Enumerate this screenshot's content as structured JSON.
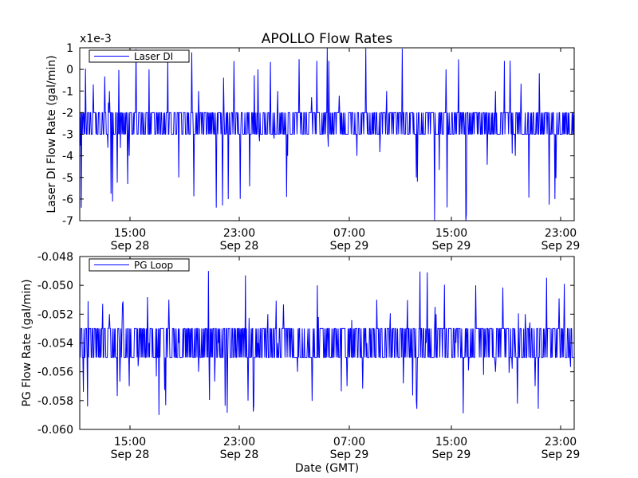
{
  "figure": {
    "title": "APOLLO Flow Rates",
    "shared_xlabel": "Date (GMT)",
    "time_ticks": [
      {
        "time": "15:00",
        "date": "Sep 28"
      },
      {
        "time": "23:00",
        "date": "Sep 28"
      },
      {
        "time": "07:00",
        "date": "Sep 29"
      },
      {
        "time": "15:00",
        "date": "Sep 29"
      },
      {
        "time": "23:00",
        "date": "Sep 29"
      }
    ]
  },
  "chart_data": [
    {
      "type": "line",
      "title": "APOLLO Flow Rates",
      "ylabel": "Laser DI Flow Rate (gal/min)",
      "xlabel": "",
      "offset_text": "x1e-3",
      "ylim": [
        -7,
        1
      ],
      "yticks": [
        "1",
        "0",
        "-1",
        "-2",
        "-3",
        "-4",
        "-5",
        "-6",
        "-7"
      ],
      "legend": {
        "label": "Laser DI",
        "location": "top-left"
      },
      "color": "#0000ff",
      "x_start": "2012-09-28 12:44",
      "x_end": "2012-09-30 00:02",
      "series": [
        {
          "name": "Laser DI",
          "typical_range": [
            -3,
            -2
          ],
          "spike_up_max": 1,
          "spike_down_min": -7,
          "summary_values": [
            -2,
            -3,
            -2,
            -1,
            -3,
            -4,
            -2,
            0,
            -2,
            -3,
            -5,
            -2,
            -1,
            -3,
            -2,
            -6,
            -2,
            -3,
            0,
            -2,
            -1,
            -4,
            -2,
            -3,
            -2,
            1,
            -2,
            -3,
            -4,
            -2,
            -2,
            -1,
            -3,
            -2,
            -5,
            -2,
            -3,
            0,
            -2,
            -7,
            -2,
            -3,
            -1,
            -2,
            -4,
            -2,
            -3,
            -2,
            -6,
            -2
          ]
        }
      ]
    },
    {
      "type": "line",
      "title": "",
      "ylabel": "PG Flow Rate (gal/min)",
      "xlabel": "Date (GMT)",
      "ylim": [
        -0.06,
        -0.048
      ],
      "yticks": [
        "-0.048",
        "-0.050",
        "-0.052",
        "-0.054",
        "-0.056",
        "-0.058",
        "-0.060"
      ],
      "legend": {
        "label": "PG Loop",
        "location": "top-left"
      },
      "color": "#0000ff",
      "x_start": "2012-09-28 12:44",
      "x_end": "2012-09-30 00:02",
      "series": [
        {
          "name": "PG Loop",
          "typical_range": [
            -0.055,
            -0.053
          ],
          "spike_up_max": -0.049,
          "spike_down_min": -0.059,
          "summary_values": [
            -0.054,
            -0.053,
            -0.055,
            -0.052,
            -0.054,
            -0.057,
            -0.053,
            -0.054,
            -0.059,
            -0.051,
            -0.054,
            -0.053,
            -0.056,
            -0.049,
            -0.054,
            -0.053,
            -0.055,
            -0.058,
            -0.054,
            -0.052,
            -0.054,
            -0.053,
            -0.056,
            -0.054,
            -0.05,
            -0.053,
            -0.054,
            -0.057,
            -0.053,
            -0.054,
            -0.051,
            -0.055,
            -0.054,
            -0.053,
            -0.058,
            -0.054,
            -0.052,
            -0.053,
            -0.054,
            -0.055,
            -0.05,
            -0.054,
            -0.056,
            -0.053,
            -0.054,
            -0.052,
            -0.057,
            -0.054,
            -0.053,
            -0.054
          ]
        }
      ]
    }
  ]
}
